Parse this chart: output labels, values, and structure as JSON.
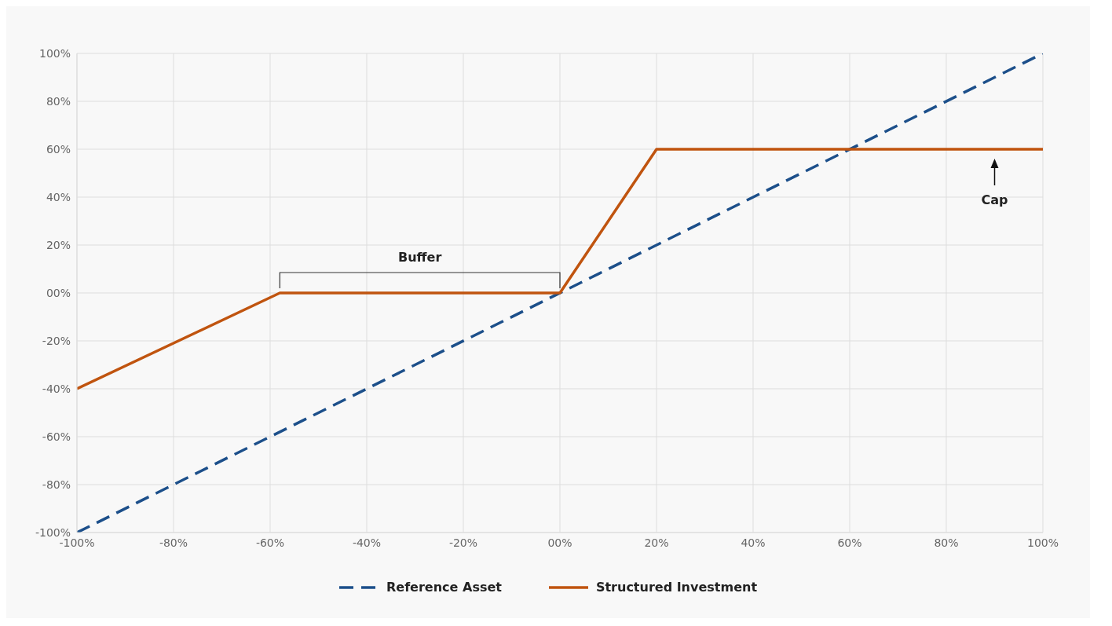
{
  "chart_data": {
    "type": "line",
    "series": [
      {
        "name": "Reference Asset",
        "color": "#1c4f8a",
        "line_style": "dashed",
        "x": [
          -100,
          100
        ],
        "values": [
          -100,
          100
        ]
      },
      {
        "name": "Structured Investment",
        "color": "#c0540f",
        "line_style": "solid",
        "x": [
          -100,
          -58,
          0,
          20,
          100
        ],
        "values": [
          -40,
          0,
          0,
          60,
          60
        ]
      }
    ],
    "xlim": [
      -100,
      100
    ],
    "ylim": [
      -100,
      100
    ],
    "xticks": [
      {
        "value": -100,
        "label": "-100%"
      },
      {
        "value": -80,
        "label": "-80%"
      },
      {
        "value": -60,
        "label": "-60%"
      },
      {
        "value": -40,
        "label": "-40%"
      },
      {
        "value": -20,
        "label": "-20%"
      },
      {
        "value": 0,
        "label": "00%"
      },
      {
        "value": 20,
        "label": "20%"
      },
      {
        "value": 40,
        "label": "40%"
      },
      {
        "value": 60,
        "label": "60%"
      },
      {
        "value": 80,
        "label": "80%"
      },
      {
        "value": 100,
        "label": "100%"
      }
    ],
    "yticks": [
      {
        "value": -100,
        "label": "-100%"
      },
      {
        "value": -80,
        "label": "-80%"
      },
      {
        "value": -60,
        "label": "-60%"
      },
      {
        "value": -40,
        "label": "-40%"
      },
      {
        "value": -20,
        "label": "-20%"
      },
      {
        "value": 0,
        "label": "00%"
      },
      {
        "value": 20,
        "label": "20%"
      },
      {
        "value": 40,
        "label": "40%"
      },
      {
        "value": 60,
        "label": "60%"
      },
      {
        "value": 80,
        "label": "80%"
      },
      {
        "value": 100,
        "label": "100%"
      }
    ],
    "annotations": [
      "Buffer",
      "Cap"
    ],
    "grid": true,
    "legend": "bottom",
    "marker": "none"
  }
}
